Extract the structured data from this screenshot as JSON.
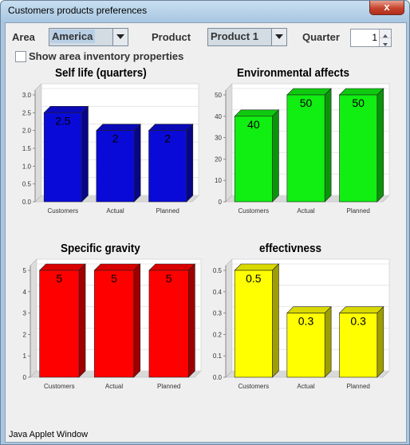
{
  "window": {
    "title": "Customers products preferences",
    "close_glyph": "x"
  },
  "controls": {
    "area_label": "Area",
    "area_value": "America",
    "product_label": "Product",
    "product_value": "Product 1",
    "quarter_label": "Quarter",
    "quarter_value": "1",
    "inventory_checkbox_label": "Show area inventory properties",
    "inventory_checked": false
  },
  "status_bar": "Java Applet Window",
  "chart_data": [
    {
      "type": "bar",
      "title": "Self life (quarters)",
      "categories": [
        "Customers",
        "Actual",
        "Planned"
      ],
      "values": [
        2.5,
        2,
        2
      ],
      "value_labels": [
        "2.5",
        "2",
        "2"
      ],
      "ylim": [
        0,
        3.0
      ],
      "y_ticks": [
        "0.0",
        "0.5",
        "1.0",
        "1.5",
        "2.0",
        "2.5",
        "3.0"
      ],
      "color": "#0a0ad8"
    },
    {
      "type": "bar",
      "title": "Environmental affects",
      "categories": [
        "Customers",
        "Actual",
        "Planned"
      ],
      "values": [
        40,
        50,
        50
      ],
      "value_labels": [
        "40",
        "50",
        "50"
      ],
      "ylim": [
        0,
        50
      ],
      "y_ticks": [
        "0",
        "10",
        "20",
        "30",
        "40",
        "50"
      ],
      "color": "#11ee11"
    },
    {
      "type": "bar",
      "title": "Specific gravity",
      "categories": [
        "Customers",
        "Actual",
        "Planned"
      ],
      "values": [
        5,
        5,
        5
      ],
      "value_labels": [
        "5",
        "5",
        "5"
      ],
      "ylim": [
        0,
        5
      ],
      "y_ticks": [
        "0",
        "1",
        "2",
        "3",
        "4",
        "5"
      ],
      "color": "#ff0000"
    },
    {
      "type": "bar",
      "title": "effectivness",
      "categories": [
        "Customers",
        "Actual",
        "Planned"
      ],
      "values": [
        0.5,
        0.3,
        0.3
      ],
      "value_labels": [
        "0.5",
        "0.3",
        "0.3"
      ],
      "ylim": [
        0,
        0.5
      ],
      "y_ticks": [
        "0.0",
        "0.1",
        "0.2",
        "0.3",
        "0.4",
        "0.5"
      ],
      "color": "#ffff00"
    }
  ]
}
